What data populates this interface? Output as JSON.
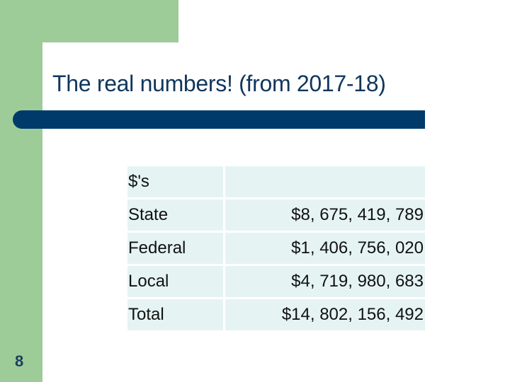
{
  "slide": {
    "title": "The real numbers! (from 2017-18)",
    "page_number": "8"
  },
  "table": {
    "header": {
      "label": "$'s",
      "value": ""
    },
    "rows": [
      {
        "label": "State",
        "value": "$8, 675, 419, 789"
      },
      {
        "label": "Federal",
        "value": "$1, 406, 756, 020"
      },
      {
        "label": "Local",
        "value": "$4, 719, 980, 683"
      },
      {
        "label": "Total",
        "value": "$14, 802, 156, 492"
      }
    ]
  },
  "colors": {
    "accent_green": "#9dcc98",
    "title_bar_navy": "#003a6b",
    "cell_background": "#e5f3f3"
  }
}
